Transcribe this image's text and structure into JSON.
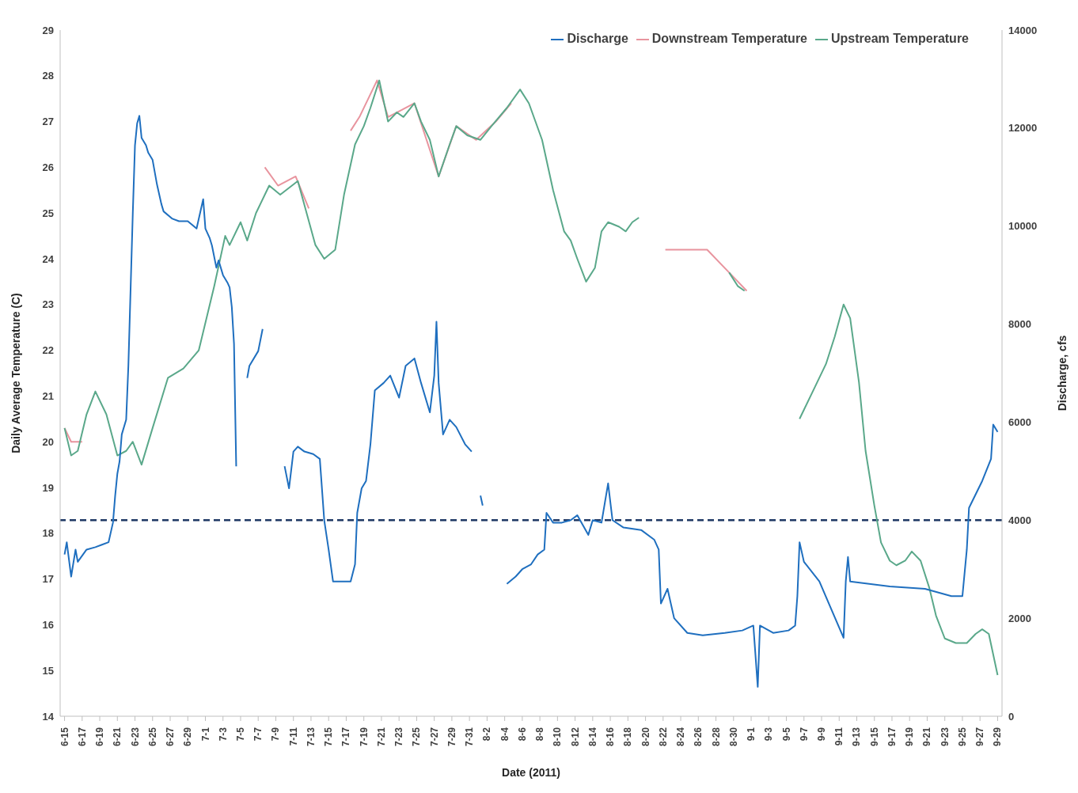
{
  "chart_data": {
    "type": "line",
    "xlabel": "Date (2011)",
    "ylabel": "Daily Average Temperature (C)",
    "y2label": "Discharge, cfs",
    "legend": "top right",
    "xlim": [
      "2011-06-14T12:00",
      "2011-09-29T12:00"
    ],
    "xticks": [
      {
        "value": "2011-06-15",
        "label": "6-15"
      },
      {
        "value": "2011-06-17",
        "label": "6-17"
      },
      {
        "value": "2011-06-19",
        "label": "6-19"
      },
      {
        "value": "2011-06-21",
        "label": "6-21"
      },
      {
        "value": "2011-06-23",
        "label": "6-23"
      },
      {
        "value": "2011-06-25",
        "label": "6-25"
      },
      {
        "value": "2011-06-27",
        "label": "6-27"
      },
      {
        "value": "2011-06-29",
        "label": "6-29"
      },
      {
        "value": "2011-07-01",
        "label": "7-1"
      },
      {
        "value": "2011-07-03",
        "label": "7-3"
      },
      {
        "value": "2011-07-05",
        "label": "7-5"
      },
      {
        "value": "2011-07-07",
        "label": "7-7"
      },
      {
        "value": "2011-07-09",
        "label": "7-9"
      },
      {
        "value": "2011-07-11",
        "label": "7-11"
      },
      {
        "value": "2011-07-13",
        "label": "7-13"
      },
      {
        "value": "2011-07-15",
        "label": "7-15"
      },
      {
        "value": "2011-07-17",
        "label": "7-17"
      },
      {
        "value": "2011-07-19",
        "label": "7-19"
      },
      {
        "value": "2011-07-21",
        "label": "7-21"
      },
      {
        "value": "2011-07-23",
        "label": "7-23"
      },
      {
        "value": "2011-07-25",
        "label": "7-25"
      },
      {
        "value": "2011-07-27",
        "label": "7-27"
      },
      {
        "value": "2011-07-29",
        "label": "7-29"
      },
      {
        "value": "2011-07-31",
        "label": "7-31"
      },
      {
        "value": "2011-08-02",
        "label": "8-2"
      },
      {
        "value": "2011-08-04",
        "label": "8-4"
      },
      {
        "value": "2011-08-06",
        "label": "8-6"
      },
      {
        "value": "2011-08-08",
        "label": "8-8"
      },
      {
        "value": "2011-08-10",
        "label": "8-10"
      },
      {
        "value": "2011-08-12",
        "label": "8-12"
      },
      {
        "value": "2011-08-14",
        "label": "8-14"
      },
      {
        "value": "2011-08-16",
        "label": "8-16"
      },
      {
        "value": "2011-08-18",
        "label": "8-18"
      },
      {
        "value": "2011-08-20",
        "label": "8-20"
      },
      {
        "value": "2011-08-22",
        "label": "8-22"
      },
      {
        "value": "2011-08-24",
        "label": "8-24"
      },
      {
        "value": "2011-08-26",
        "label": "8-26"
      },
      {
        "value": "2011-08-28",
        "label": "8-28"
      },
      {
        "value": "2011-08-30",
        "label": "8-30"
      },
      {
        "value": "2011-09-01",
        "label": "9-1"
      },
      {
        "value": "2011-09-03",
        "label": "9-3"
      },
      {
        "value": "2011-09-05",
        "label": "9-5"
      },
      {
        "value": "2011-09-07",
        "label": "9-7"
      },
      {
        "value": "2011-09-09",
        "label": "9-9"
      },
      {
        "value": "2011-09-11",
        "label": "9-11"
      },
      {
        "value": "2011-09-13",
        "label": "9-13"
      },
      {
        "value": "2011-09-15",
        "label": "9-15"
      },
      {
        "value": "2011-09-17",
        "label": "9-17"
      },
      {
        "value": "2011-09-19",
        "label": "9-19"
      },
      {
        "value": "2011-09-21",
        "label": "9-21"
      },
      {
        "value": "2011-09-23",
        "label": "9-23"
      },
      {
        "value": "2011-09-25",
        "label": "9-25"
      },
      {
        "value": "2011-09-27",
        "label": "9-27"
      },
      {
        "value": "2011-09-29",
        "label": "9-29"
      }
    ],
    "ylim": [
      14,
      29
    ],
    "yticks": [
      14,
      15,
      16,
      17,
      18,
      19,
      20,
      21,
      22,
      23,
      24,
      25,
      26,
      27,
      28,
      29
    ],
    "y2lim": [
      0,
      14000
    ],
    "y2ticks": [
      0,
      2000,
      4000,
      6000,
      8000,
      10000,
      12000,
      14000
    ],
    "ref_lines": [
      {
        "axis": "y2",
        "value": 4000,
        "color": "#1f3864",
        "line_style": "dashed"
      }
    ],
    "series": [
      {
        "name": "Downstream Temperature",
        "color": "#e8949e",
        "x": [
          "2011-06-15",
          "2011-06-15T18:00",
          "2011-06-17",
          "2011-06-18",
          "2011-07-07T18:00",
          "2011-07-09T06:00",
          "2011-07-11T06:00",
          "2011-07-12T18:00",
          "2011-07-14",
          "2011-07-17T12:00",
          "2011-07-18T12:00",
          "2011-07-20T12:00",
          "2011-07-21T18:00",
          "2011-07-24T18:00",
          "2011-07-27T12:00",
          "2011-07-29T12:00",
          "2011-07-31T18:00",
          "2011-08-03",
          "2011-08-04T18:00",
          "2011-08-10",
          "2011-08-22T06:00",
          "2011-08-27",
          "2011-08-29T12:00",
          "2011-08-31T12:00"
        ],
        "values": [
          20.3,
          20.0,
          20.0,
          null,
          26.0,
          25.6,
          25.8,
          25.1,
          null,
          26.8,
          27.1,
          27.9,
          27.1,
          27.4,
          25.8,
          26.9,
          26.6,
          27.0,
          27.4,
          null,
          24.2,
          24.2,
          23.7,
          23.3
        ]
      },
      {
        "name": "Upstream Temperature",
        "color": "#5aa88a",
        "x": [
          "2011-06-15",
          "2011-06-15T18:00",
          "2011-06-16T12:00",
          "2011-06-17T12:00",
          "2011-06-18T12:00",
          "2011-06-19T18:00",
          "2011-06-21",
          "2011-06-22",
          "2011-06-22T18:00",
          "2011-06-23T18:00",
          "2011-06-25",
          "2011-06-26T18:00",
          "2011-06-28T12:00",
          "2011-06-30T06:00",
          "2011-07-02",
          "2011-07-03T06:00",
          "2011-07-03T18:00",
          "2011-07-05",
          "2011-07-05T18:00",
          "2011-07-06T18:00",
          "2011-07-08T06:00",
          "2011-07-09T12:00",
          "2011-07-11T12:00",
          "2011-07-13T12:00",
          "2011-07-14T12:00",
          "2011-07-15T18:00",
          "2011-07-16T18:00",
          "2011-07-18",
          "2011-07-19",
          "2011-07-19T18:00",
          "2011-07-20T18:00",
          "2011-07-21T18:00",
          "2011-07-22T18:00",
          "2011-07-23T12:00",
          "2011-07-24T18:00",
          "2011-07-25T12:00",
          "2011-07-26T12:00",
          "2011-07-27T12:00",
          "2011-07-28T18:00",
          "2011-07-29T12:00",
          "2011-07-30T18:00",
          "2011-08-01T06:00",
          "2011-08-02T12:00",
          "2011-08-04T06:00",
          "2011-08-05T18:00",
          "2011-08-06T18:00",
          "2011-08-08T06:00",
          "2011-08-09T12:00",
          "2011-08-10T18:00",
          "2011-08-11T12:00",
          "2011-08-12T06:00",
          "2011-08-13T06:00",
          "2011-08-14T06:00",
          "2011-08-15",
          "2011-08-15T18:00",
          "2011-08-17",
          "2011-08-17T18:00",
          "2011-08-18T12:00",
          "2011-08-19T06:00",
          "2011-08-20",
          "2011-08-29T12:00",
          "2011-08-30T12:00",
          "2011-08-31T06:00",
          "2011-09-03",
          "2011-09-06T12:00",
          "2011-09-08T06:00",
          "2011-09-09T12:00",
          "2011-09-10T12:00",
          "2011-09-11T12:00",
          "2011-09-12T06:00",
          "2011-09-13T06:00",
          "2011-09-14",
          "2011-09-15",
          "2011-09-15T18:00",
          "2011-09-16T18:00",
          "2011-09-17T12:00",
          "2011-09-18T12:00",
          "2011-09-19T06:00",
          "2011-09-20T06:00",
          "2011-09-21T06:00",
          "2011-09-22",
          "2011-09-23",
          "2011-09-24T06:00",
          "2011-09-25T12:00",
          "2011-09-26T12:00",
          "2011-09-27T06:00",
          "2011-09-28",
          "2011-09-29"
        ],
        "values": [
          20.3,
          19.7,
          19.8,
          20.6,
          21.1,
          20.6,
          19.7,
          19.8,
          20.0,
          19.5,
          20.3,
          21.4,
          21.6,
          22.0,
          23.4,
          24.5,
          24.3,
          24.8,
          24.4,
          25.0,
          25.6,
          25.4,
          25.7,
          24.3,
          24.0,
          24.2,
          25.4,
          26.5,
          26.9,
          27.3,
          27.9,
          27.0,
          27.2,
          27.1,
          27.4,
          27.0,
          26.6,
          25.8,
          26.5,
          26.9,
          26.7,
          26.6,
          26.9,
          27.3,
          27.7,
          27.4,
          26.6,
          25.5,
          24.6,
          24.4,
          24.0,
          23.5,
          23.8,
          24.6,
          24.8,
          24.7,
          24.6,
          24.8,
          24.9,
          null,
          23.7,
          23.4,
          23.3,
          null,
          20.5,
          21.2,
          21.7,
          22.3,
          23.0,
          22.7,
          21.3,
          19.8,
          18.6,
          17.8,
          17.4,
          17.3,
          17.4,
          17.6,
          17.4,
          16.8,
          16.2,
          15.7,
          15.6,
          15.6,
          15.8,
          15.9,
          15.8,
          14.9
        ]
      },
      {
        "name": "Discharge",
        "color": "#1f6fbf",
        "axis": "y2",
        "x": [
          "2011-06-15",
          "2011-06-15T06:00",
          "2011-06-15T18:00",
          "2011-06-16T06:00",
          "2011-06-16T12:00",
          "2011-06-17T12:00",
          "2011-06-18T12:00",
          "2011-06-19T06:00",
          "2011-06-20",
          "2011-06-20T12:00",
          "2011-06-20T18:00",
          "2011-06-21",
          "2011-06-21T06:00",
          "2011-06-21T12:00",
          "2011-06-22",
          "2011-06-22T06:00",
          "2011-06-22T12:00",
          "2011-06-22T18:00",
          "2011-06-23",
          "2011-06-23T06:00",
          "2011-06-23T12:00",
          "2011-06-23T18:00",
          "2011-06-24T06:00",
          "2011-06-24T12:00",
          "2011-06-25",
          "2011-06-25T12:00",
          "2011-06-26",
          "2011-06-26T06:00",
          "2011-06-27T06:00",
          "2011-06-28",
          "2011-06-29",
          "2011-06-30",
          "2011-06-30T18:00",
          "2011-07-01",
          "2011-07-01T12:00",
          "2011-07-01T18:00",
          "2011-07-02T06:00",
          "2011-07-02T12:00",
          "2011-07-03",
          "2011-07-03T12:00",
          "2011-07-03T18:00",
          "2011-07-04",
          "2011-07-04T06:00",
          "2011-07-04T12:00",
          "2011-07-05",
          "2011-07-05T18:00",
          "2011-07-06",
          "2011-07-07",
          "2011-07-07T12:00",
          "2011-07-08T12:00",
          "2011-07-10",
          "2011-07-10T12:00",
          "2011-07-11",
          "2011-07-11T12:00",
          "2011-07-12T06:00",
          "2011-07-13T06:00",
          "2011-07-14",
          "2011-07-14T12:00",
          "2011-07-15",
          "2011-07-15T12:00",
          "2011-07-16T18:00",
          "2011-07-17T12:00",
          "2011-07-18",
          "2011-07-18T06:00",
          "2011-07-18T18:00",
          "2011-07-19T06:00",
          "2011-07-19T18:00",
          "2011-07-20T06:00",
          "2011-07-21T06:00",
          "2011-07-22",
          "2011-07-23",
          "2011-07-23T18:00",
          "2011-07-24T18:00",
          "2011-07-25T12:00",
          "2011-07-26T12:00",
          "2011-07-27",
          "2011-07-27T06:00",
          "2011-07-27T12:00",
          "2011-07-28",
          "2011-07-28T18:00",
          "2011-07-29T12:00",
          "2011-07-30T12:00",
          "2011-07-31T06:00",
          "2011-07-31T18:00",
          "2011-08-01T06:00",
          "2011-08-01T12:00",
          "2011-08-02",
          "2011-08-04T06:00",
          "2011-08-05T06:00",
          "2011-08-06",
          "2011-08-07",
          "2011-08-07T18:00",
          "2011-08-08T12:00",
          "2011-08-08T18:00",
          "2011-08-09T12:00",
          "2011-08-10T12:00",
          "2011-08-11T12:00",
          "2011-08-12T06:00",
          "2011-08-13T12:00",
          "2011-08-14",
          "2011-08-15",
          "2011-08-15T18:00",
          "2011-08-16T06:00",
          "2011-08-17T12:00",
          "2011-08-19T12:00",
          "2011-08-21",
          "2011-08-21T12:00",
          "2011-08-21T18:00",
          "2011-08-22T12:00",
          "2011-08-23T06:00",
          "2011-08-24T18:00",
          "2011-08-26T12:00",
          "2011-08-29",
          "2011-08-31",
          "2011-09-01T06:00",
          "2011-09-01T18:00",
          "2011-09-02",
          "2011-09-03T12:00",
          "2011-09-05T06:00",
          "2011-09-06",
          "2011-09-06T06:00",
          "2011-09-06T12:00",
          "2011-09-07",
          "2011-09-08T18:00",
          "2011-09-11T12:00",
          "2011-09-11T18:00",
          "2011-09-12",
          "2011-09-12T06:00",
          "2011-09-16T18:00",
          "2011-09-20T18:00",
          "2011-09-23T18:00",
          "2011-09-25",
          "2011-09-25T12:00",
          "2011-09-25T18:00",
          "2011-09-27T06:00",
          "2011-09-28T06:00",
          "2011-09-28T12:00",
          "2011-09-29"
        ],
        "values": [
          3300,
          3550,
          2850,
          3400,
          3150,
          3400,
          3450,
          3500,
          3550,
          3950,
          4500,
          4950,
          5200,
          5750,
          6050,
          7150,
          8700,
          10250,
          11650,
          12100,
          12250,
          11800,
          11650,
          11500,
          11350,
          10850,
          10450,
          10300,
          10150,
          10100,
          10100,
          9950,
          10550,
          9950,
          9750,
          9600,
          9150,
          9300,
          9000,
          8850,
          8750,
          8350,
          7600,
          5100,
          null,
          6900,
          7150,
          7450,
          7900,
          null,
          5100,
          4650,
          5400,
          5500,
          5400,
          5350,
          5250,
          4000,
          3400,
          2750,
          2750,
          2750,
          3100,
          4150,
          4650,
          4800,
          5550,
          6650,
          6800,
          6950,
          6500,
          7150,
          7300,
          6800,
          6200,
          6950,
          8050,
          6800,
          5750,
          6050,
          5900,
          5550,
          5400,
          null,
          4500,
          4300,
          null,
          2700,
          2850,
          3000,
          3100,
          3300,
          3400,
          4150,
          3950,
          3950,
          4000,
          4100,
          3700,
          4000,
          3950,
          4750,
          4000,
          3850,
          3800,
          3600,
          3400,
          2300,
          2600,
          2000,
          1700,
          1650,
          1700,
          1750,
          1850,
          600,
          1850,
          1700,
          1750,
          1850,
          2450,
          3550,
          3150,
          2750,
          1600,
          2750,
          3250,
          2750,
          2650,
          2600,
          2450,
          2450,
          3400,
          4250,
          4800,
          5250,
          5950,
          5800
        ]
      }
    ]
  }
}
